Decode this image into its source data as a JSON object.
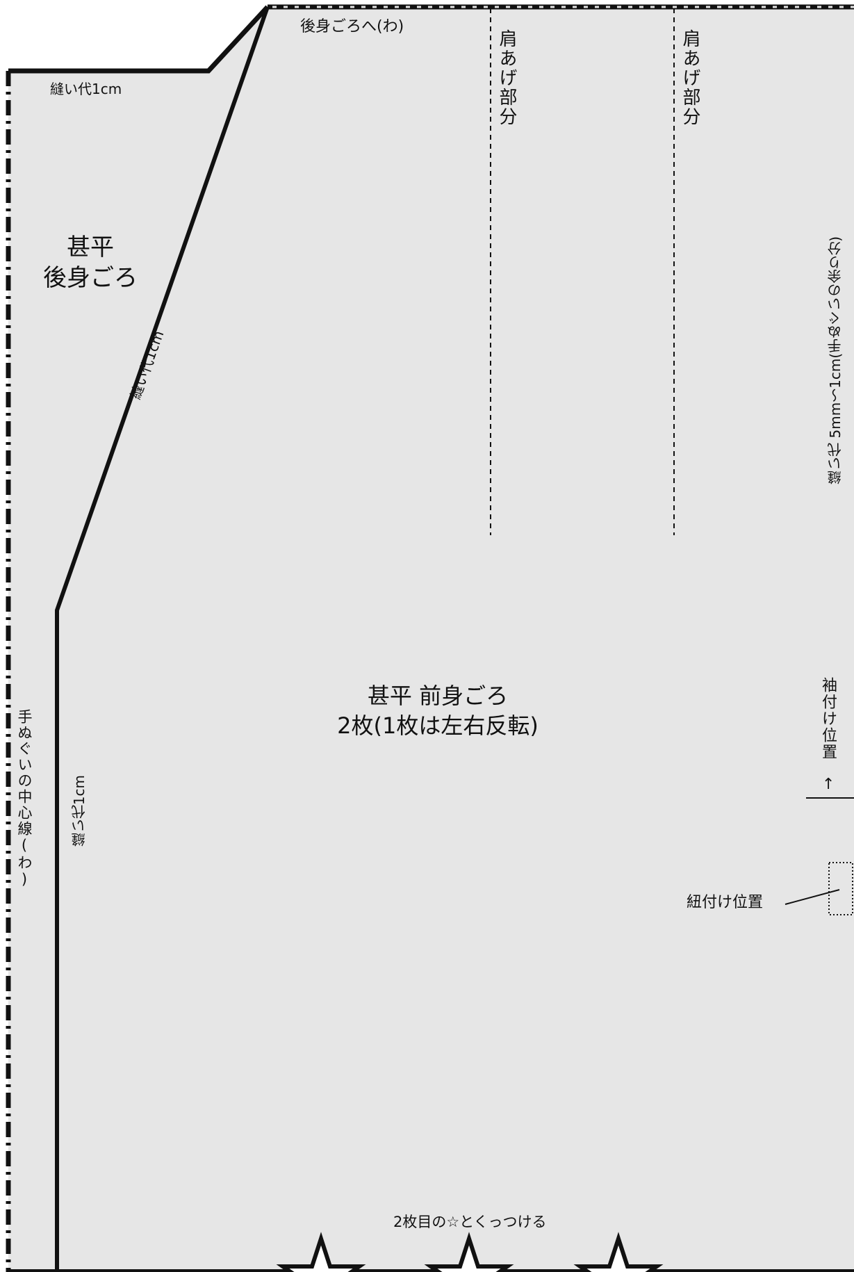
{
  "pattern": {
    "background_fill": "#e6e6e6",
    "line_color": "#111111",
    "labels": {
      "to_back_body": "後身ごろへ(わ)",
      "shoulder_tuck_1": "肩あげ部分",
      "shoulder_tuck_2": "肩あげ部分",
      "seam_allowance_top": "縫い代1cm",
      "back_body_title_line1": "甚平",
      "back_body_title_line2": "後身ごろ",
      "seam_allowance_diagonal": "縫い代1cm",
      "front_body_title_line1": "甚平 前身ごろ",
      "front_body_title_line2": "2枚(1枚は左右反転)",
      "seam_allowance_left_inner": "縫い代1cm",
      "center_line": "手ぬぐいの中心線(わ)",
      "seam_allowance_right": "縫い代 5mm〜1cm(手ぬぐいの余り分)",
      "sleeve_position": "袖付け位置",
      "sleeve_arrow": "↑",
      "tie_position": "紐付け位置",
      "align_star_note": "2枚目の☆とくっつける"
    },
    "star_count": 3
  }
}
